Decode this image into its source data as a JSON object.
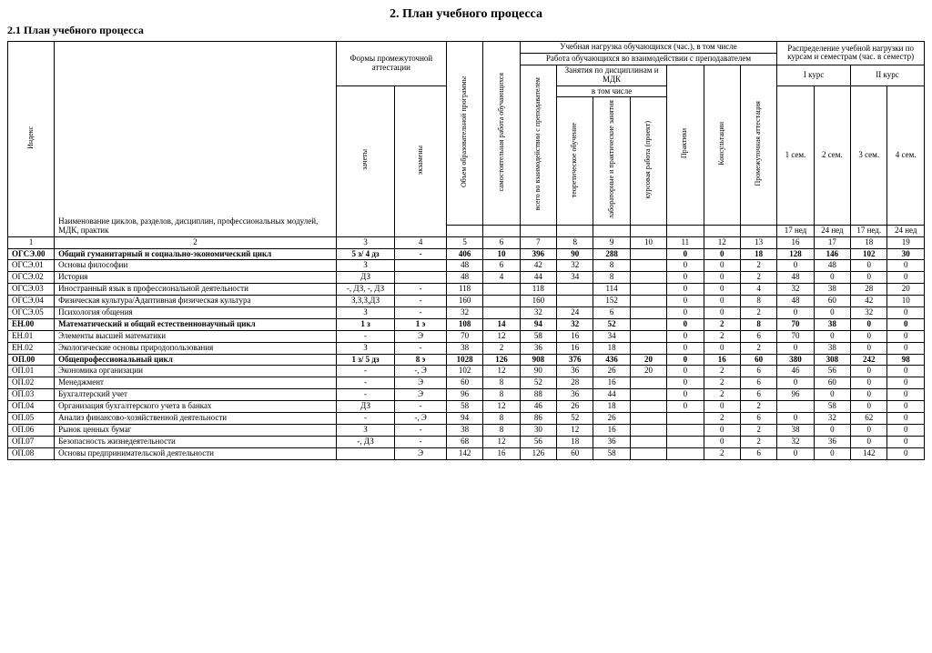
{
  "titles": {
    "main": "2. План учебного процесса",
    "sub": "2.1 План учебного процесса"
  },
  "header": {
    "index": "Индекс",
    "name": "Наименование циклов, разделов, дисциплин, профессиональных модулей, МДК, практик",
    "forms": "Формы промежуточной аттестации",
    "zachety": "зачеты",
    "ekzameny": "экзамены",
    "obem": "Объем образовательной программы",
    "samost": "самостоятельная работа обучающихся",
    "uch_nag": "Учебная нагрузка обучающихся (час.), в том числе",
    "rabota": "Работа обучающихся во взаимодействии с преподавателем",
    "vsego": "всего во взаимодействии с преподавателем",
    "zanyatia": "Занятия по дисциплинам и МДК",
    "vtomchisle": "в том числе",
    "teor": "теоретическое обучение",
    "lab": "лабораторные и практические занятия",
    "kurs": "курсовая работа (проект)",
    "praktiki": "Практики",
    "konsult": "Консультации",
    "attest": "Промежуточная аттестация",
    "raspred": "Распределение учебной нагрузки по курсам и семестрам (час. в семестр)",
    "kurs1": "I курс",
    "kurs2": "II курс",
    "sem1": "1 сем.",
    "sem2": "2 сем.",
    "sem3": "3 сем.",
    "sem4": "4 сем.",
    "w17": "17 нед",
    "w24": "24 нед",
    "w17b": "17 нед.",
    "w24b": "24 нед"
  },
  "colnums": [
    "1",
    "2",
    "3",
    "4",
    "5",
    "6",
    "7",
    "8",
    "9",
    "10",
    "11",
    "12",
    "13",
    "16",
    "17",
    "18",
    "19"
  ],
  "rows": [
    {
      "bold": true,
      "idx": "ОГСЭ.00",
      "name": "Общий гуманитарный и социально-экономический цикл",
      "c": [
        "5 з/ 4 дз",
        "-",
        "406",
        "10",
        "396",
        "90",
        "288",
        "",
        "0",
        "0",
        "18",
        "128",
        "146",
        "102",
        "30"
      ]
    },
    {
      "idx": "ОГСЭ.01",
      "name": "Основы философии",
      "c": [
        "З",
        "",
        "48",
        "6",
        "42",
        "32",
        "8",
        "",
        "0",
        "0",
        "2",
        "0",
        "48",
        "0",
        "0"
      ]
    },
    {
      "idx": "ОГСЭ.02",
      "name": "История",
      "c": [
        "ДЗ",
        "",
        "48",
        "4",
        "44",
        "34",
        "8",
        "",
        "0",
        "0",
        "2",
        "48",
        "0",
        "0",
        "0"
      ]
    },
    {
      "idx": "ОГСЭ.03",
      "name": "Иностранный язык в профессиональной деятельности",
      "c": [
        "-, ДЗ, -, ДЗ",
        "-",
        "118",
        "",
        "118",
        "",
        "114",
        "",
        "0",
        "0",
        "4",
        "32",
        "38",
        "28",
        "20"
      ]
    },
    {
      "idx": "ОГСЭ.04",
      "name": "Физическая культура/Адаптивная физическая культура",
      "c": [
        "З,З,З,ДЗ",
        "-",
        "160",
        "",
        "160",
        "",
        "152",
        "",
        "0",
        "0",
        "8",
        "48",
        "60",
        "42",
        "10"
      ]
    },
    {
      "idx": "ОГСЭ.05",
      "name": "Психология общения",
      "c": [
        "З",
        "-",
        "32",
        "",
        "32",
        "24",
        "6",
        "",
        "0",
        "0",
        "2",
        "0",
        "0",
        "32",
        "0"
      ]
    },
    {
      "bold": true,
      "idx": "ЕН.00",
      "name": "Математический и общий естественнонаучный цикл",
      "c": [
        "1 з",
        "1 э",
        "108",
        "14",
        "94",
        "32",
        "52",
        "",
        "0",
        "2",
        "8",
        "70",
        "38",
        "0",
        "0"
      ]
    },
    {
      "idx": "ЕН.01",
      "name": "Элементы высшей математики",
      "c": [
        "-",
        "Э",
        "70",
        "12",
        "58",
        "16",
        "34",
        "",
        "0",
        "2",
        "6",
        "70",
        "0",
        "0",
        "0"
      ]
    },
    {
      "idx": "ЕН.02",
      "name": "Экологические основы природопользования",
      "c": [
        "З",
        "-",
        "38",
        "2",
        "36",
        "16",
        "18",
        "",
        "0",
        "0",
        "2",
        "0",
        "38",
        "0",
        "0"
      ]
    },
    {
      "bold": true,
      "idx": "ОП.00",
      "name": "Общепрофессиональный цикл",
      "c": [
        "1 з/ 5 дз",
        "8 э",
        "1028",
        "126",
        "908",
        "376",
        "436",
        "20",
        "0",
        "16",
        "60",
        "380",
        "308",
        "242",
        "98"
      ]
    },
    {
      "idx": "ОП.01",
      "name": "Экономика организации",
      "c": [
        "-",
        "-, Э",
        "102",
        "12",
        "90",
        "36",
        "26",
        "20",
        "0",
        "2",
        "6",
        "46",
        "56",
        "0",
        "0"
      ]
    },
    {
      "idx": "ОП.02",
      "name": "Менеджмент",
      "c": [
        "-",
        "Э",
        "60",
        "8",
        "52",
        "28",
        "16",
        "",
        "0",
        "2",
        "6",
        "0",
        "60",
        "0",
        "0"
      ]
    },
    {
      "idx": "ОП.03",
      "name": "Бухгалтерский учет",
      "c": [
        "-",
        "Э",
        "96",
        "8",
        "88",
        "36",
        "44",
        "",
        "0",
        "2",
        "6",
        "96",
        "0",
        "0",
        "0"
      ]
    },
    {
      "idx": "ОП.04",
      "name": "Организация бухгалтерского учета в банках",
      "c": [
        "ДЗ",
        "-",
        "58",
        "12",
        "46",
        "26",
        "18",
        "",
        "0",
        "0",
        "2",
        "",
        "58",
        "0",
        "0"
      ]
    },
    {
      "idx": "ОП.05",
      "name": "Анализ финансово-хозяйственной деятельности",
      "c": [
        "-",
        "-, Э",
        "94",
        "8",
        "86",
        "52",
        "26",
        "",
        "",
        "2",
        "6",
        "0",
        "32",
        "62",
        "0"
      ]
    },
    {
      "idx": "ОП.06",
      "name": "Рынок ценных бумаг",
      "c": [
        "З",
        "-",
        "38",
        "8",
        "30",
        "12",
        "16",
        "",
        "",
        "0",
        "2",
        "38",
        "0",
        "0",
        "0"
      ]
    },
    {
      "idx": "ОП.07",
      "name": "Безопасность жизнедеятельности",
      "c": [
        "-, ДЗ",
        "-",
        "68",
        "12",
        "56",
        "18",
        "36",
        "",
        "",
        "0",
        "2",
        "32",
        "36",
        "0",
        "0"
      ]
    },
    {
      "idx": "ОП.08",
      "name": "Основы предпринимательской деятельности",
      "c": [
        "",
        "Э",
        "142",
        "16",
        "126",
        "60",
        "58",
        "",
        "",
        "2",
        "6",
        "0",
        "0",
        "142",
        "0"
      ]
    }
  ],
  "style": {
    "bg": "#ffffff",
    "border": "#000000",
    "font": "Times New Roman",
    "base_fs": 9,
    "title_fs": 14
  }
}
